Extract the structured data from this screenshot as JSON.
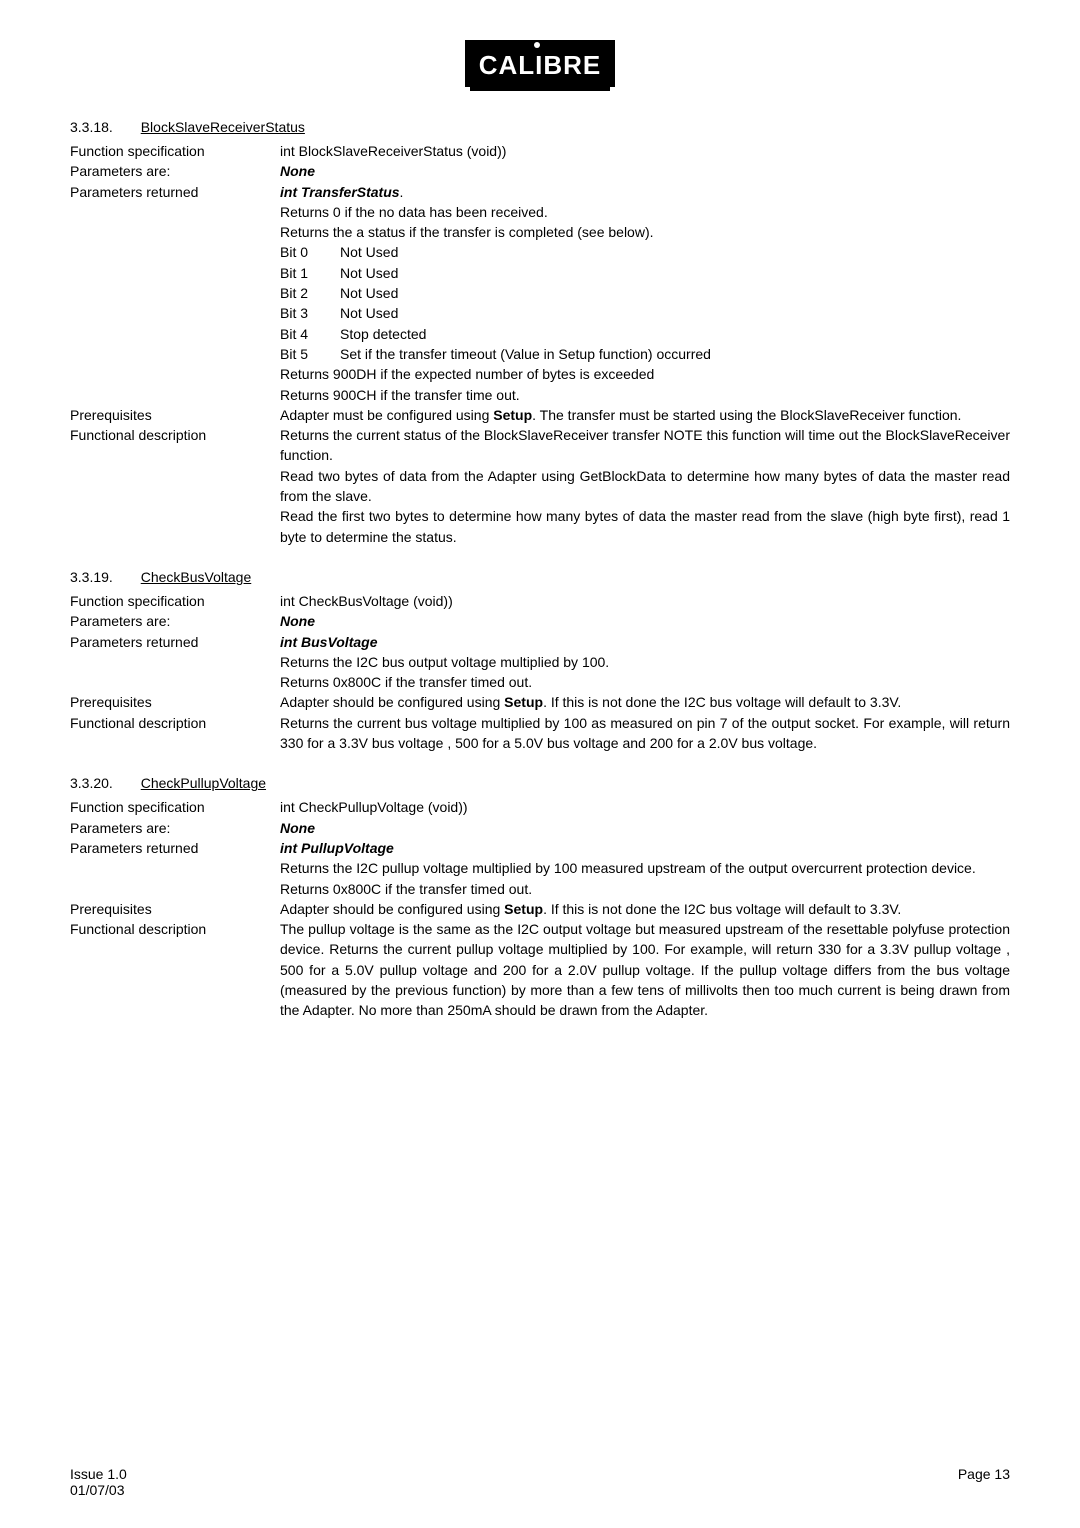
{
  "logo_text": "CALIBRE",
  "sections": {
    "s1": {
      "num": "3.3.18.",
      "title": "BlockSlaveReceiverStatus",
      "fn_spec_label": "Function specification",
      "fn_spec_value": "int BlockSlaveReceiverStatus (void))",
      "params_are_label": "Parameters are:",
      "params_are_value": "None",
      "params_ret_label": "Parameters returned",
      "params_ret_value": "int TransferStatus",
      "params_ret_suffix": ".",
      "returns0": "Returns 0 if the no data has been received.",
      "returns1": "Returns the a status if the transfer is completed (see below).",
      "bits": [
        {
          "b": "Bit 0",
          "t": "Not Used"
        },
        {
          "b": "Bit 1",
          "t": "Not Used"
        },
        {
          "b": "Bit 2",
          "t": "Not Used"
        },
        {
          "b": "Bit 3",
          "t": "Not Used"
        },
        {
          "b": "Bit 4",
          "t": "Stop detected"
        },
        {
          "b": "Bit 5",
          "t": "Set if the transfer timeout (Value in Setup function) occurred"
        }
      ],
      "ret900DH": "Returns 900DH if the expected number of bytes is exceeded",
      "ret900CH": "Returns 900CH if the transfer time out.",
      "prereq_label": "Prerequisites",
      "prereq_pre": "Adapter must be configured using ",
      "prereq_bold": "Setup",
      "prereq_post": ". The transfer must be started using the BlockSlaveReceiver function.",
      "fd_label": "Functional description",
      "fd1": "Returns the current status of the BlockSlaveReceiver transfer NOTE this function will time out the BlockSlaveReceiver function.",
      "fd2": "Read two bytes of data from the Adapter using GetBlockData to determine how many bytes of data the master read from the slave.",
      "fd3": "Read the first two bytes to determine how many bytes of data the master read from the slave (high byte first), read 1 byte to determine the status."
    },
    "s2": {
      "num": "3.3.19.",
      "title": "CheckBusVoltage",
      "fn_spec_label": "Function specification",
      "fn_spec_value": "int CheckBusVoltage (void))",
      "params_are_label": "Parameters are:",
      "params_are_value": "None",
      "params_ret_label": "Parameters returned",
      "params_ret_value": "int BusVoltage",
      "ret1": "Returns the I2C bus output voltage multiplied by 100.",
      "ret2": "Returns 0x800C  if the transfer timed out.",
      "prereq_label": "Prerequisites",
      "prereq_pre": "Adapter should be configured using ",
      "prereq_bold": "Setup",
      "prereq_post": ". If this is not done the I2C bus voltage will default to 3.3V.",
      "fd_label": "Functional description",
      "fd": "Returns the current bus voltage multiplied by 100 as measured on pin 7 of the output socket.  For example, will return 330 for a 3.3V bus voltage , 500 for a 5.0V bus voltage and 200 for a 2.0V bus voltage."
    },
    "s3": {
      "num": "3.3.20.",
      "title": "CheckPullupVoltage",
      "fn_spec_label": "Function specification",
      "fn_spec_value": "int CheckPullupVoltage (void))",
      "params_are_label": "Parameters are:",
      "params_are_value": "None",
      "params_ret_label": "Parameters returned",
      "params_ret_value": "int PullupVoltage",
      "ret1": "Returns the I2C pullup voltage multiplied by 100 measured upstream of the output overcurrent protection device.",
      "ret2": "Returns 0x800C  if the transfer timed out.",
      "prereq_label": "Prerequisites",
      "prereq_pre": "Adapter should be configured using ",
      "prereq_bold": "Setup",
      "prereq_post": ". If this is not done the I2C bus voltage will default to 3.3V.",
      "fd_label": "Functional description",
      "fd": "The pullup voltage is the same as the I2C output voltage but measured upstream of the resettable polyfuse protection device.  Returns the current pullup voltage multiplied by 100.  For example, will return 330 for a 3.3V pullup voltage , 500 for a 5.0V pullup voltage and 200 for a 2.0V pullup voltage. If the pullup voltage differs from the bus voltage (measured by the previous function) by more than a few tens of millivolts then too much current is being drawn from the Adapter.  No more than 250mA should be drawn from the Adapter."
    }
  },
  "footer": {
    "issue": "Issue 1.0",
    "date": "01/07/03",
    "page": "Page 13"
  }
}
